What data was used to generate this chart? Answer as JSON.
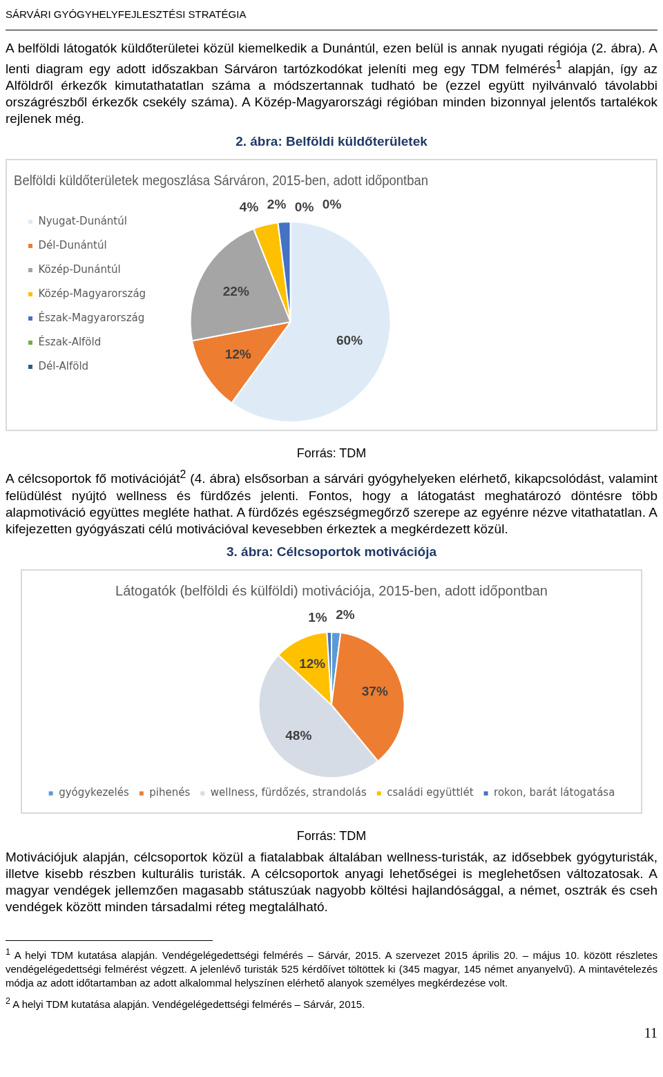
{
  "chart_data": [
    {
      "type": "pie",
      "title": "Belföldi küldőterületek megoszlása Sárváron, 2015-ben, adott időpontban",
      "categories": [
        "Nyugat-Dunántúl",
        "Dél-Dunántúl",
        "Közép-Dunántúl",
        "Közép-Magyarország",
        "Észak-Magyarország",
        "Észak-Alföld",
        "Dél-Alföld"
      ],
      "values": [
        60,
        12,
        22,
        4,
        2,
        0,
        0
      ],
      "value_labels": [
        "60%",
        "12%",
        "22%",
        "4%",
        "2%",
        "0%",
        "0%"
      ],
      "colors": [
        "#deebf7",
        "#ed7d31",
        "#a5a5a5",
        "#ffc000",
        "#4472c4",
        "#70ad47",
        "#255e91"
      ],
      "legend": "left",
      "annotations": [
        "SÁRVÁRI GYÓGYHELYFEJLESZTÉSI STRATÉGIA",
        "A belföldi látogatók küldőterületei közül kiemelkedik a Dunántúl, ezen belül is annak nyugati régiója (2. ábra). A lenti diagram egy adott időszakban Sárváron tartózkodókat jeleníti meg egy TDM felmérés$^{1}$ alapján, így az Alföldről érkezők kimutathatatlan száma a módszertannak tudható be (ezzel együtt nyilvánvaló távolabbi országrészből érkezők csekély száma). A Közép-Magyarországi régióban minden bizonnyal jelentős tartalékok rejlenek még.",
        "2. ábra: Belföldi küldőterületek",
        "Forrás: TDM"
      ]
    },
    {
      "type": "pie",
      "title": "Látogatók (belföldi és külföldi) motivációja, 2015-ben, adott időpontban",
      "categories": [
        "gyógykezelés",
        "pihenés",
        "wellness, fürdőzés, strandolás",
        "családi együttlét",
        "rokon, barát látogatása"
      ],
      "values": [
        2,
        37,
        48,
        12,
        1
      ],
      "value_labels": [
        "2%",
        "37%",
        "48%",
        "12%",
        "1%"
      ],
      "colors": [
        "#5b9bd5",
        "#ed7d31",
        "#d6dce5",
        "#ffc000",
        "#4472c4"
      ],
      "legend": "bottom",
      "annotations": [
        "A célcsoportok fő motivációját$^{2}$ (4. ábra) elsősorban a sárvári gyógyhelyeken elérhető, kikapcsolódást, valamint felüdülést nyújtó wellness és fürdőzés jelenti. Fontos, hogy a látogatást meghatározó döntésre több alapmotiváció együttes megléte hathat. A fürdőzés egészségmegőrző szerepe az egyénre nézve vitathatatlan. A kifejezetten gyógyászati célú motivációval kevesebben érkeztek a megkérdezett közül.",
        "3. ábra: Célcsoportok motivációja",
        "Forrás: TDM",
        "Motivációjuk alapján, célcsoportok közül a fiatalabbak általában wellness-turisták, az idősebbek gyógyturisták, illetve kisebb részben kulturális turisták. A célcsoportok anyagi lehetőségei is meglehetősen változatosak. A magyar vendégek jellemzően magasabb státuszúak nagyobb költési hajlandósággal, a német, osztrák és cseh vendégek között minden társadalmi réteg megtalálható.",
        "$^{1}$ A helyi TDM kutatása alapján. Vendégelégedettségi felmérés – Sárvár, 2015. A szervezet 2015 április 20. – május 10. között részletes vendégelégedettségi felmérést végzett. A jelenlévő turisták 525 kérdőívet töltöttek ki (345 magyar, 145 német anyanyelvű). A mintavételezés módja az adott időtartamban az adott alkalommal helyszínen elérhető alanyok személyes megkérdezése volt.",
        "$^{2}$ A helyi TDM kutatása alapján. Vendégelégedettségi felmérés – Sárvár, 2015.",
        "11"
      ]
    }
  ]
}
